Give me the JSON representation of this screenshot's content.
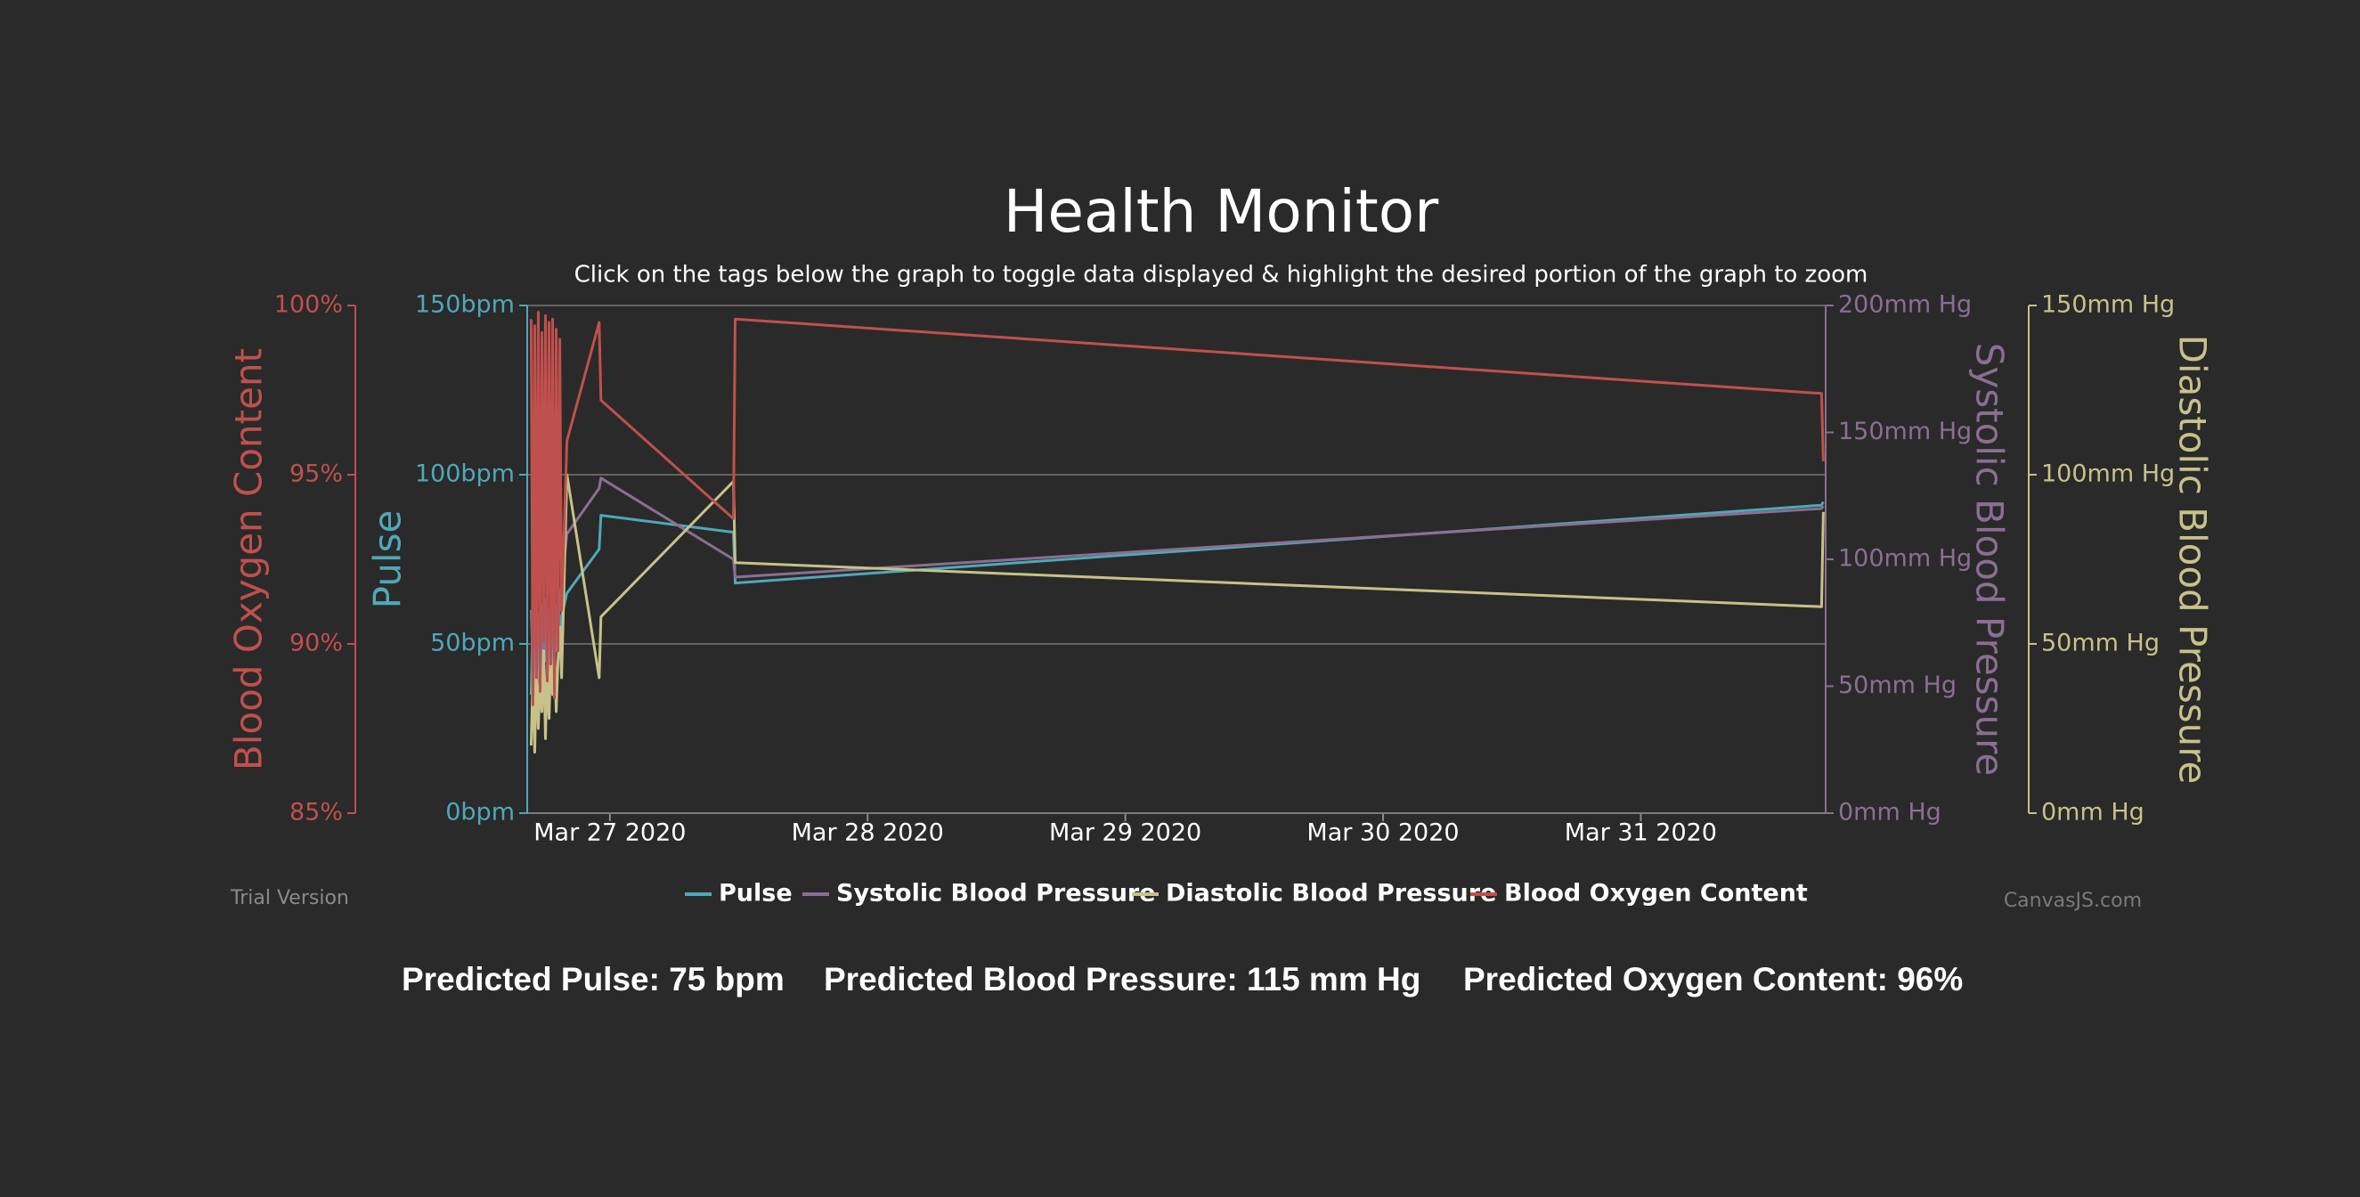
{
  "chart_data": {
    "type": "line",
    "title": "Health Monitor",
    "subtitle": "Click on the tags below the graph to toggle data displayed & highlight the desired portion of the graph to zoom",
    "x": [
      "2020-03-26T16:40",
      "2020-03-26T16:50",
      "2020-03-26T17:00",
      "2020-03-26T17:10",
      "2020-03-26T17:20",
      "2020-03-26T17:30",
      "2020-03-26T17:40",
      "2020-03-26T17:50",
      "2020-03-26T18:00",
      "2020-03-26T18:10",
      "2020-03-26T18:20",
      "2020-03-26T18:30",
      "2020-03-26T18:40",
      "2020-03-26T18:50",
      "2020-03-26T19:00",
      "2020-03-26T19:10",
      "2020-03-26T19:20",
      "2020-03-26T19:30",
      "2020-03-26T20:00",
      "2020-03-26T23:00",
      "2020-03-26T23:10",
      "2020-03-27T11:30",
      "2020-03-27T11:40",
      "2020-03-31T16:50",
      "2020-03-31T17:00"
    ],
    "xlim": [
      "2020-03-26T16:18",
      "2020-03-31T17:13"
    ],
    "xticks": [
      {
        "value": "2020-03-27T00:00",
        "label": "Mar 27 2020"
      },
      {
        "value": "2020-03-28T00:00",
        "label": "Mar 28 2020"
      },
      {
        "value": "2020-03-29T00:00",
        "label": "Mar 29 2020"
      },
      {
        "value": "2020-03-30T00:00",
        "label": "Mar 30 2020"
      },
      {
        "value": "2020-03-31T00:00",
        "label": "Mar 31 2020"
      }
    ],
    "y_axes": [
      {
        "title": "Blood Oxygen Content",
        "color": "#c0504d",
        "side": "left",
        "grid": false,
        "ylim": [
          85,
          100
        ],
        "yticks": [
          {
            "value": 85,
            "label": "85%"
          },
          {
            "value": 90,
            "label": "90%"
          },
          {
            "value": 95,
            "label": "95%"
          },
          {
            "value": 100,
            "label": "100%"
          }
        ]
      },
      {
        "title": "Pulse",
        "color": "#4fa8b8",
        "side": "left",
        "grid": true,
        "ylim": [
          0,
          150
        ],
        "yticks": [
          {
            "value": 0,
            "label": "0bpm"
          },
          {
            "value": 50,
            "label": "50bpm"
          },
          {
            "value": 100,
            "label": "100bpm"
          },
          {
            "value": 150,
            "label": "150bpm"
          }
        ]
      },
      {
        "title": "Systolic Blood Pressure",
        "color": "#8a6f92",
        "side": "right",
        "grid": false,
        "ylim": [
          0,
          200
        ],
        "yticks": [
          {
            "value": 0,
            "label": "0mm Hg"
          },
          {
            "value": 50,
            "label": "50mm Hg"
          },
          {
            "value": 100,
            "label": "100mm Hg"
          },
          {
            "value": 150,
            "label": "150mm Hg"
          },
          {
            "value": 200,
            "label": "200mm Hg"
          }
        ]
      },
      {
        "title": "Diastolic Blood Pressure",
        "color": "#c6c289",
        "side": "right",
        "grid": false,
        "ylim": [
          0,
          150
        ],
        "yticks": [
          {
            "value": 0,
            "label": "0mm Hg"
          },
          {
            "value": 50,
            "label": "50mm Hg"
          },
          {
            "value": 100,
            "label": "100mm Hg"
          },
          {
            "value": 150,
            "label": "150mm Hg"
          }
        ]
      }
    ],
    "series": [
      {
        "name": "Pulse",
        "color": "#4fa8b8",
        "axis": 1,
        "values": [
          35,
          60,
          28,
          55,
          40,
          62,
          30,
          58,
          45,
          52,
          38,
          60,
          42,
          55,
          48,
          62,
          50,
          58,
          65,
          78,
          88,
          83,
          68,
          91,
          92
        ]
      },
      {
        "name": "Systolic Blood Pressure",
        "color": "#8a6f92",
        "axis": 2,
        "values": [
          80,
          60,
          85,
          62,
          78,
          66,
          82,
          60,
          84,
          64,
          80,
          62,
          86,
          65,
          82,
          70,
          84,
          90,
          110,
          128,
          132,
          100,
          93,
          120,
          121
        ]
      },
      {
        "name": "Diastolic Blood Pressure",
        "color": "#c6c289",
        "axis": 3,
        "values": [
          20,
          42,
          18,
          45,
          25,
          40,
          30,
          48,
          22,
          44,
          28,
          46,
          35,
          50,
          30,
          45,
          55,
          40,
          100,
          40,
          58,
          98,
          74,
          61,
          89
        ]
      },
      {
        "name": "Blood Oxygen Content",
        "color": "#c0504d",
        "axis": 0,
        "values": [
          99.6,
          88.2,
          99.4,
          89.0,
          99.8,
          88.6,
          99.2,
          90.1,
          99.7,
          88.9,
          99.5,
          89.4,
          99.6,
          88.4,
          99.3,
          89.8,
          99.0,
          91.0,
          96.0,
          99.5,
          97.2,
          93.7,
          99.6,
          97.4,
          95.4
        ]
      }
    ]
  },
  "footer": {
    "trial": "Trial Version",
    "credit": "CanvasJS.com"
  },
  "predictions": [
    "Predicted Pulse: 75 bpm",
    "Predicted Blood Pressure: 115 mm Hg",
    "Predicted Oxygen Content: 96%"
  ]
}
